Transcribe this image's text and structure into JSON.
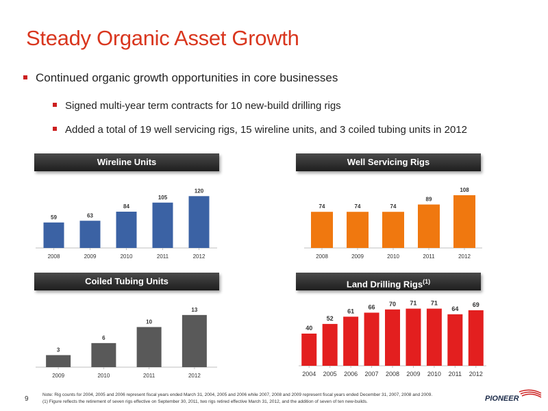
{
  "slide": {
    "title": "Steady Organic Asset Growth",
    "bullets": [
      "Continued organic growth opportunities in core businesses",
      "Signed multi-year term contracts for 10 new-build drilling rigs",
      "Added a total of 19 well servicing rigs, 15 wireline units, and 3 coiled tubing units in 2012"
    ],
    "page_number": "9",
    "footnote_1": "Note: Rig counts for 2004, 2005 and 2006 represent fiscal years ended March 31, 2004, 2005 and 2006 while 2007, 2008 and 2009 represent fiscal years ended December 31, 2007, 2008 and 2009.",
    "footnote_2": "(1)  Figure reflects the retirement of seven rigs effective on September 30, 2011, two rigs retired effective March 31, 2012, and the addition of seven of ten new-builds.",
    "logo_text": "PIONEER",
    "logo_color": "#cc1f1f"
  },
  "chart_data": [
    {
      "type": "bar",
      "title": "Wireline Units",
      "title_sup": "",
      "categories": [
        "2008",
        "2009",
        "2010",
        "2011",
        "2012"
      ],
      "values": [
        59,
        63,
        84,
        105,
        120
      ],
      "color": "#3b62a4",
      "ylim": [
        0,
        130
      ]
    },
    {
      "type": "bar",
      "title": "Well Servicing Rigs",
      "title_sup": "",
      "categories": [
        "2008",
        "2009",
        "2010",
        "2011",
        "2012"
      ],
      "values": [
        74,
        74,
        74,
        89,
        108
      ],
      "color": "#f0780f",
      "ylim": [
        0,
        115
      ]
    },
    {
      "type": "bar",
      "title": "Coiled Tubing Units",
      "title_sup": "",
      "categories": [
        "2009",
        "2010",
        "2011",
        "2012"
      ],
      "values": [
        3,
        6,
        10,
        13
      ],
      "color": "#595959",
      "ylim": [
        0,
        14
      ]
    },
    {
      "type": "bar",
      "title": "Land Drilling Rigs",
      "title_sup": "(1)",
      "categories": [
        "2004",
        "2005",
        "2006",
        "2007",
        "2008",
        "2009",
        "2010",
        "2011",
        "2012"
      ],
      "values": [
        40,
        52,
        61,
        66,
        70,
        71,
        71,
        64,
        69
      ],
      "color": "#e31f1f",
      "ylim": [
        0,
        80
      ]
    }
  ]
}
